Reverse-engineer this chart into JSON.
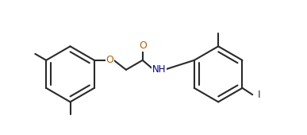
{
  "background": "#ffffff",
  "bond_color": "#2a2a2a",
  "O_color": "#b85c00",
  "N_color": "#00008b",
  "I_color": "#2a2a2a",
  "lw": 1.5,
  "fs": 9.0,
  "xlim": [
    -0.5,
    11.0
  ],
  "ylim": [
    -0.3,
    4.8
  ],
  "fig_w": 3.87,
  "fig_h": 1.7,
  "dpi": 100
}
